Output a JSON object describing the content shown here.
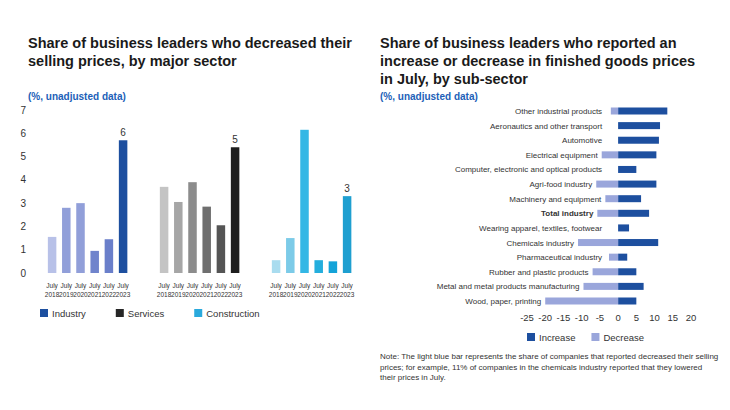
{
  "chart_data": [
    {
      "type": "bar",
      "title": "Share of business leaders who decreased their selling prices, by major sector",
      "subtitle": "(%, unadjusted data)",
      "categories": [
        "July 2018",
        "July 2019",
        "July 2020",
        "July 2021",
        "July 2022",
        "July 2023"
      ],
      "series": [
        {
          "name": "Industry",
          "color": "#1d4f9f",
          "colors": [
            "#b8c1e8",
            "#919fd9",
            "#919fd9",
            "#7084cc",
            "#6a7fca",
            "#1d4f9f"
          ],
          "values": [
            1.55,
            2.8,
            3.0,
            0.95,
            1.45,
            5.7
          ],
          "value_labels": [
            null,
            null,
            null,
            null,
            null,
            "6"
          ]
        },
        {
          "name": "Services",
          "color": "#262626",
          "colors": [
            "#c4c4c4",
            "#a6a6a6",
            "#8c8c8c",
            "#6f6f6f",
            "#555555",
            "#1e1e1e"
          ],
          "values": [
            3.7,
            3.05,
            3.9,
            2.85,
            2.05,
            5.4
          ],
          "value_labels": [
            null,
            null,
            null,
            null,
            null,
            "5"
          ]
        },
        {
          "name": "Construction",
          "color": "#2aa9dc",
          "colors": [
            "#a9dcef",
            "#7ccbe8",
            "#33b7e5",
            "#24aedd",
            "#14a3d8",
            "#1e9fd0"
          ],
          "values": [
            0.55,
            1.5,
            6.15,
            0.55,
            0.5,
            3.3
          ],
          "value_labels": [
            null,
            null,
            null,
            null,
            null,
            "3"
          ]
        }
      ],
      "ylim": [
        0,
        7
      ],
      "yticks": [
        0,
        1,
        2,
        3,
        4,
        5,
        6,
        7
      ],
      "grid": false,
      "legend": "bottom"
    },
    {
      "type": "bar",
      "title": "Share of business leaders who reported an increase or decrease in finished goods prices in July, by sub-sector",
      "subtitle": "(%, unadjusted data)",
      "orientation": "horizontal",
      "categories": [
        "Other industrial products",
        "Aeronautics and other transport",
        "Automotive",
        "Electrical equipment",
        "Computer, electronic and optical products",
        "Agri-food industry",
        "Machinery and equipment",
        "Total industry",
        "Wearing apparel, textiles, footwear",
        "Chemicals industry",
        "Pharmaceutical industry",
        "Rubber and plastic products",
        "Metal and metal products manufacturing",
        "Wood, paper, printing"
      ],
      "series": [
        {
          "name": "Increase",
          "color": "#1d4f9f",
          "values": [
            13.5,
            11.5,
            11.2,
            10.5,
            5,
            10.5,
            6.3,
            8.5,
            3,
            11,
            2.5,
            5,
            7,
            5
          ]
        },
        {
          "name": "Decrease",
          "color": "#9aa6db",
          "values": [
            -2,
            0,
            0,
            -4.5,
            0,
            -6,
            -3.5,
            -5.7,
            0,
            -11,
            -2.5,
            -7,
            -9.5,
            -20
          ]
        }
      ],
      "xlim": [
        -25,
        20
      ],
      "xticks": [
        -25,
        -20,
        -15,
        -10,
        -5,
        0,
        5,
        10,
        15,
        20
      ],
      "grid": false,
      "legend": "bottom",
      "note": "Note: The light blue bar represents the share of companies that reported decreased their selling prices; for example, 11% of companies in the chemicals industry reported that they lowered their prices in July."
    }
  ]
}
